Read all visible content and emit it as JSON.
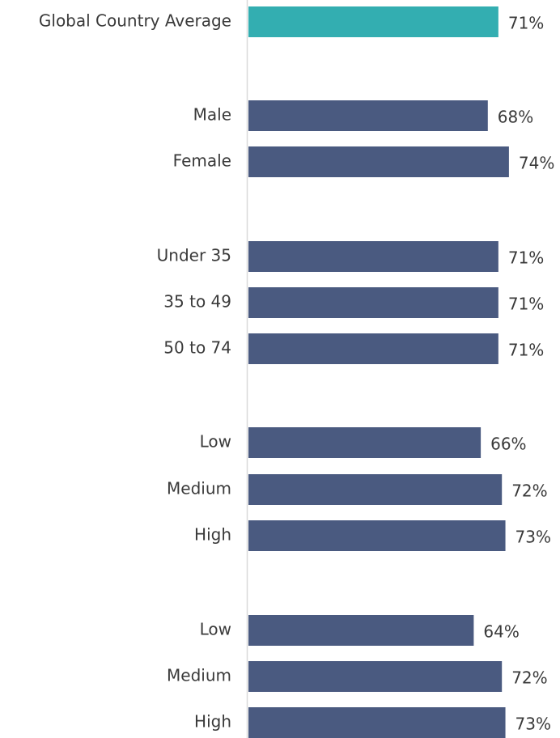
{
  "chart_data": {
    "type": "bar",
    "orientation": "horizontal",
    "title": "",
    "xlabel": "",
    "ylabel": "",
    "value_suffix": "%",
    "colors": {
      "highlight": "#33AEB1",
      "default": "#4A5A80",
      "axis": "#d9d9d9"
    },
    "categories": [
      "Global Country Average",
      "Male",
      "Female",
      "Under 35",
      "35 to 49",
      "50 to 74",
      "Low",
      "Medium",
      "High",
      "Low",
      "Medium",
      "High"
    ],
    "values": [
      71,
      68,
      74,
      71,
      71,
      71,
      66,
      72,
      73,
      64,
      72,
      73
    ],
    "highlight_index": 0
  }
}
